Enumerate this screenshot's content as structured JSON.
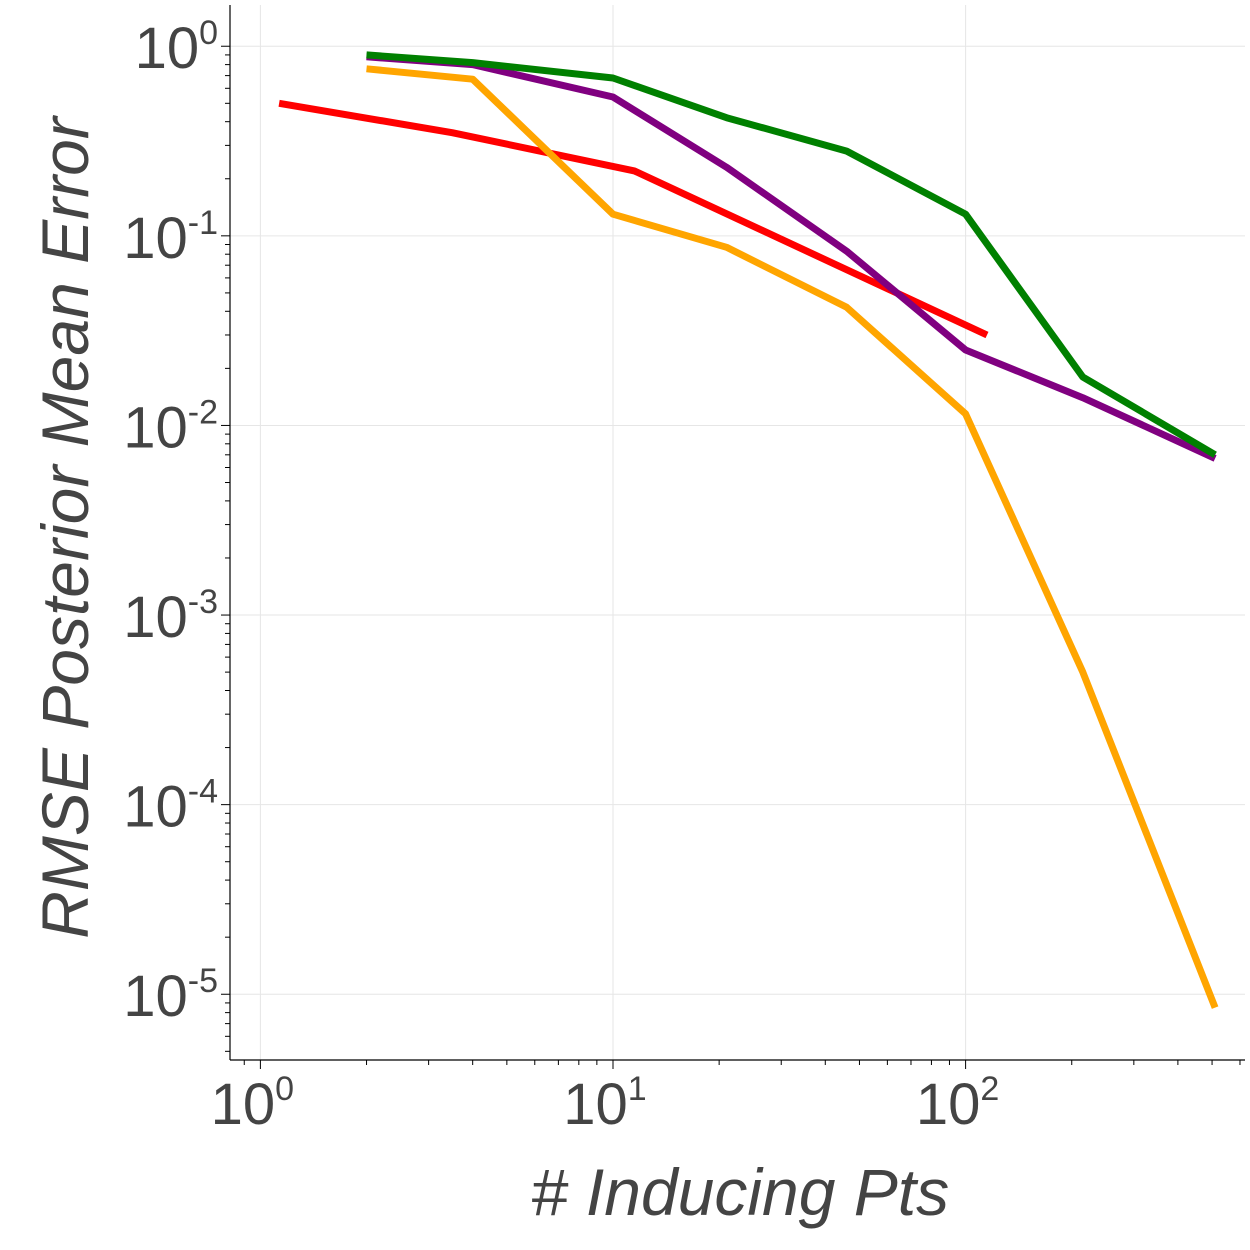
{
  "chart_data": {
    "type": "line",
    "title": "",
    "xlabel": "# Inducing Pts",
    "ylabel": "RMSE Posterior Mean Error",
    "xscale": "log",
    "yscale": "log",
    "xlim": [
      0.82,
      620
    ],
    "ylim": [
      4.5e-06,
      1.65
    ],
    "grid": true,
    "legend": "none",
    "x_ticks": [
      {
        "base": "10",
        "exp": "0",
        "value": 1
      },
      {
        "base": "10",
        "exp": "1",
        "value": 10
      },
      {
        "base": "10",
        "exp": "2",
        "value": 100
      }
    ],
    "y_ticks": [
      {
        "base": "10",
        "exp": "0",
        "value": 1
      },
      {
        "base": "10",
        "exp": "-1",
        "value": 0.1
      },
      {
        "base": "10",
        "exp": "-2",
        "value": 0.01
      },
      {
        "base": "10",
        "exp": "-3",
        "value": 0.001
      },
      {
        "base": "10",
        "exp": "-4",
        "value": 0.0001
      },
      {
        "base": "10",
        "exp": "-5",
        "value": 1e-05
      }
    ],
    "series": [
      {
        "name": "red",
        "color": "#ff0000",
        "x": [
          1.13,
          3.5,
          11.5,
          115
        ],
        "y": [
          0.5,
          0.35,
          0.22,
          0.03
        ]
      },
      {
        "name": "orange",
        "color": "#ffa500",
        "x": [
          2,
          4,
          10,
          21,
          46,
          100,
          215,
          510
        ],
        "y": [
          0.76,
          0.67,
          0.13,
          0.087,
          0.042,
          0.0115,
          0.0005,
          8.5e-06
        ]
      },
      {
        "name": "purple",
        "color": "#800080",
        "x": [
          2,
          4,
          10,
          21,
          46,
          100,
          215,
          510
        ],
        "y": [
          0.88,
          0.8,
          0.54,
          0.23,
          0.083,
          0.025,
          0.014,
          0.0067
        ]
      },
      {
        "name": "green",
        "color": "#008000",
        "x": [
          2,
          4,
          10,
          21,
          46,
          100,
          215,
          510
        ],
        "y": [
          0.9,
          0.82,
          0.68,
          0.42,
          0.28,
          0.13,
          0.018,
          0.007
        ]
      }
    ]
  }
}
